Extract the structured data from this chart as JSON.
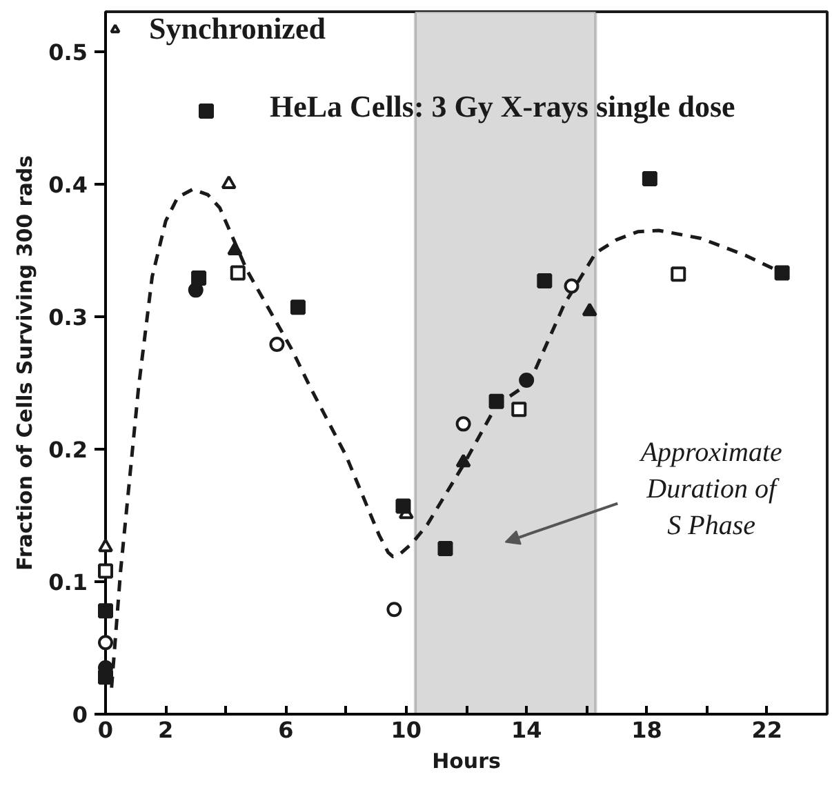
{
  "chart_data": {
    "type": "scatter",
    "title": "HeLa Cells: 3 Gy X-rays single dose",
    "xlabel": "Hours",
    "ylabel": "Fraction of Cells Surviving 300 rads",
    "xlim": [
      0,
      24
    ],
    "ylim": [
      0,
      0.53
    ],
    "xticks": [
      0,
      2,
      {
        "value": 4,
        "label": null
      },
      6,
      {
        "value": 8,
        "label": null
      },
      10,
      {
        "value": 12,
        "label": null
      },
      14,
      {
        "value": 16,
        "label": null
      },
      18,
      {
        "value": 20,
        "label": null
      },
      22
    ],
    "yticks": [
      0,
      0.1,
      0.2,
      0.3,
      0.4,
      0.5
    ],
    "legend": "top left",
    "grid": false,
    "bands": [
      {
        "axis": "x",
        "from": 10.3,
        "to": 16.3,
        "label": "Approximate Duration of S Phase",
        "color": "#d9d9d9"
      }
    ],
    "series": [
      {
        "name": "Synchronized",
        "marker": "triangle",
        "color": "#ffffff",
        "x": [
          0,
          4.1,
          10.0
        ],
        "values": [
          0.126,
          0.4,
          0.151
        ]
      },
      {
        "marker": "triangle",
        "color": "#1a1a1a",
        "x": [
          4.3,
          11.9,
          16.1
        ],
        "values": [
          0.35,
          0.19,
          0.304
        ]
      },
      {
        "marker": "square",
        "color": "#1a1a1a",
        "x": [
          0,
          0,
          3.35,
          3.1,
          6.4,
          9.9,
          11.3,
          13.0,
          14.6,
          18.1,
          22.5
        ],
        "values": [
          0.078,
          0.028,
          0.455,
          0.329,
          0.307,
          0.157,
          0.125,
          0.236,
          0.327,
          0.404,
          0.333
        ]
      },
      {
        "marker": "square",
        "color": "#ffffff",
        "x": [
          0,
          4.4,
          13.75,
          19.05
        ],
        "values": [
          0.108,
          0.333,
          0.23,
          0.332
        ]
      },
      {
        "marker": "circle",
        "color": "#ffffff",
        "x": [
          0,
          5.7,
          9.6,
          11.9,
          15.5
        ],
        "values": [
          0.054,
          0.279,
          0.079,
          0.219,
          0.323
        ]
      },
      {
        "marker": "circle",
        "color": "#1a1a1a",
        "x": [
          0,
          3.0,
          14.0
        ],
        "values": [
          0.035,
          0.32,
          0.252
        ]
      },
      {
        "type": "line",
        "marker": "none",
        "line_style": "dashed",
        "color": "#1a1a1a",
        "x": [
          0.2,
          0.5,
          1.1,
          1.55,
          2.0,
          2.4,
          2.9,
          3.4,
          3.8,
          4.7,
          6.2,
          6.8,
          8.0,
          9.1,
          9.4,
          9.55,
          9.8,
          10.2,
          10.7,
          11.9,
          13.0,
          14.1,
          15.25,
          16.3,
          17.0,
          17.7,
          18.4,
          19.8,
          21.3,
          22.5
        ],
        "values": [
          0.02,
          0.108,
          0.247,
          0.33,
          0.372,
          0.39,
          0.396,
          0.392,
          0.382,
          0.335,
          0.275,
          0.247,
          0.195,
          0.135,
          0.122,
          0.119,
          0.121,
          0.129,
          0.143,
          0.188,
          0.233,
          0.25,
          0.309,
          0.348,
          0.358,
          0.364,
          0.365,
          0.359,
          0.346,
          0.333
        ]
      }
    ]
  }
}
